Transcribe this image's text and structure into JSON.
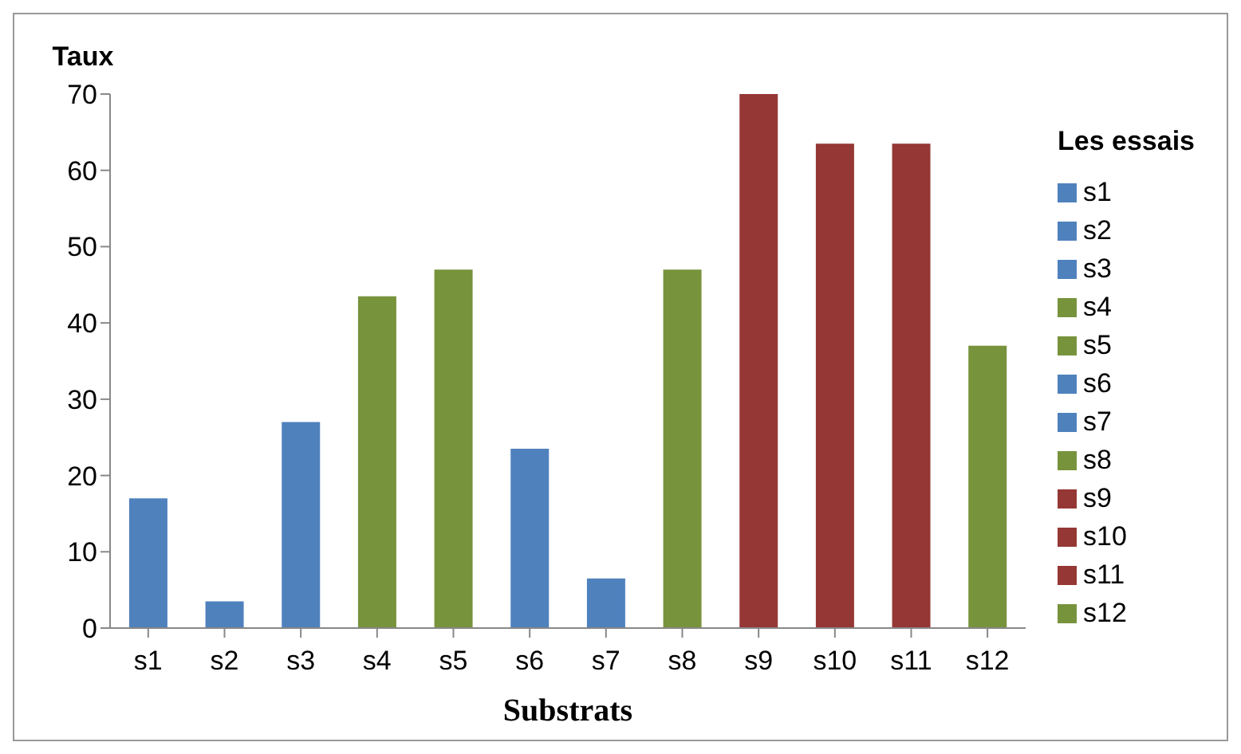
{
  "chart_data": {
    "type": "bar",
    "xlabel": "Substrats",
    "ylabel": "Taux",
    "legend_title": "Les essais",
    "stacked": true,
    "categories": [
      "s1",
      "s2",
      "s3",
      "s4",
      "s5",
      "s6",
      "s7",
      "s8",
      "s9",
      "s10",
      "s11",
      "s12"
    ],
    "series": [
      {
        "name": "s1",
        "color": "#4f81bd",
        "values": [
          17,
          null,
          null,
          null,
          null,
          null,
          null,
          null,
          null,
          null,
          null,
          null
        ]
      },
      {
        "name": "s2",
        "color": "#4f81bd",
        "values": [
          null,
          3.5,
          null,
          null,
          null,
          null,
          null,
          null,
          null,
          null,
          null,
          null
        ]
      },
      {
        "name": "s3",
        "color": "#4f81bd",
        "values": [
          null,
          null,
          27,
          null,
          null,
          null,
          null,
          null,
          null,
          null,
          null,
          null
        ]
      },
      {
        "name": "s4",
        "color": "#77933c",
        "values": [
          null,
          null,
          null,
          43.5,
          null,
          null,
          null,
          null,
          null,
          null,
          null,
          null
        ]
      },
      {
        "name": "s5",
        "color": "#77933c",
        "values": [
          null,
          null,
          null,
          null,
          47,
          null,
          null,
          null,
          null,
          null,
          null,
          null
        ]
      },
      {
        "name": "s6",
        "color": "#4f81bd",
        "values": [
          null,
          null,
          null,
          null,
          null,
          23.5,
          null,
          null,
          null,
          null,
          null,
          null
        ]
      },
      {
        "name": "s7",
        "color": "#4f81bd",
        "values": [
          null,
          null,
          null,
          null,
          null,
          null,
          6.5,
          null,
          null,
          null,
          null,
          null
        ]
      },
      {
        "name": "s8",
        "color": "#77933c",
        "values": [
          null,
          null,
          null,
          null,
          null,
          null,
          null,
          47,
          null,
          null,
          null,
          null
        ]
      },
      {
        "name": "s9",
        "color": "#953735",
        "values": [
          null,
          null,
          null,
          null,
          null,
          null,
          null,
          null,
          70,
          null,
          null,
          null
        ]
      },
      {
        "name": "s10",
        "color": "#953735",
        "values": [
          null,
          null,
          null,
          null,
          null,
          null,
          null,
          null,
          null,
          63.5,
          null,
          null
        ]
      },
      {
        "name": "s11",
        "color": "#953735",
        "values": [
          null,
          null,
          null,
          null,
          null,
          null,
          null,
          null,
          null,
          null,
          63.5,
          null
        ]
      },
      {
        "name": "s12",
        "color": "#77933c",
        "values": [
          null,
          null,
          null,
          null,
          null,
          null,
          null,
          null,
          null,
          null,
          null,
          37
        ]
      }
    ],
    "ylim": [
      0,
      70
    ],
    "yticks": [
      0,
      10,
      20,
      30,
      40,
      50,
      60,
      70
    ],
    "legend": "right"
  }
}
